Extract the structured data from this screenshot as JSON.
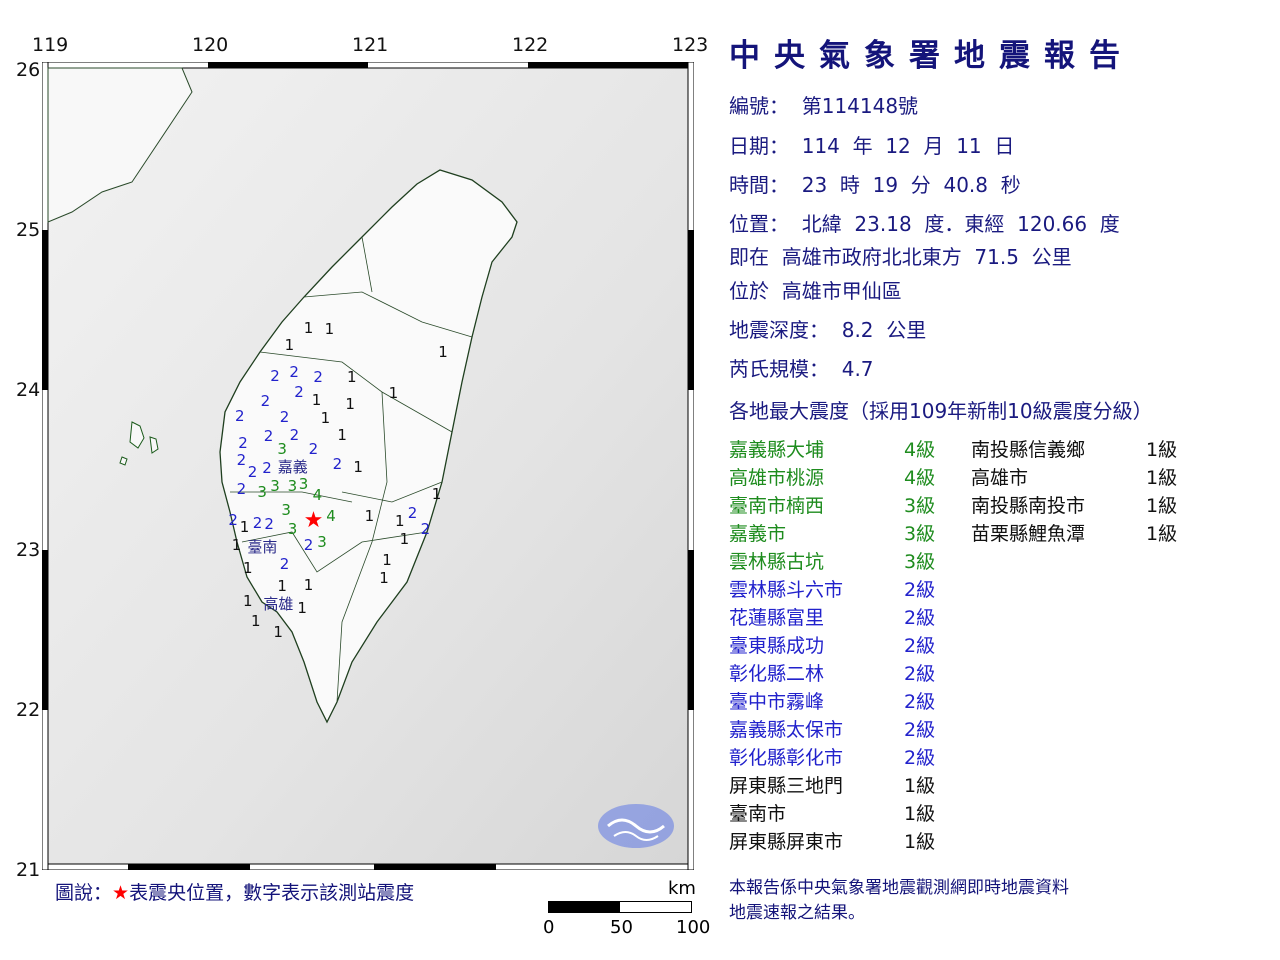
{
  "map": {
    "lon_ticks": [
      "119",
      "120",
      "121",
      "122",
      "123"
    ],
    "lat_ticks": [
      "26",
      "25",
      "24",
      "23",
      "22",
      "21"
    ],
    "epicenter": {
      "lat": 23.18,
      "lon": 120.66,
      "symbol": "★",
      "color": "#ff0000"
    },
    "city_labels": [
      {
        "name": "嘉義",
        "lon": 120.53,
        "lat": 23.52
      },
      {
        "name": "臺南",
        "lon": 120.34,
        "lat": 23.02
      },
      {
        "name": "高雄",
        "lon": 120.44,
        "lat": 22.66
      }
    ],
    "intensity_colors": {
      "1": "#111111",
      "2": "#2222cc",
      "3": "#1e8c1e",
      "4": "#1e8c1e"
    },
    "stations": [
      {
        "v": "1",
        "lon": 120.63,
        "lat": 24.39
      },
      {
        "v": "1",
        "lon": 120.76,
        "lat": 24.38
      },
      {
        "v": "1",
        "lon": 120.51,
        "lat": 24.28
      },
      {
        "v": "1",
        "lon": 121.47,
        "lat": 24.24
      },
      {
        "v": "1",
        "lon": 120.9,
        "lat": 24.08
      },
      {
        "v": "1",
        "lon": 121.16,
        "lat": 23.98
      },
      {
        "v": "1",
        "lon": 120.68,
        "lat": 23.94
      },
      {
        "v": "1",
        "lon": 120.89,
        "lat": 23.91
      },
      {
        "v": "1",
        "lon": 120.71,
        "lat": 23.85
      },
      {
        "v": "1",
        "lon": 120.84,
        "lat": 23.72
      },
      {
        "v": "1",
        "lon": 120.94,
        "lat": 23.52
      },
      {
        "v": "1",
        "lon": 121.01,
        "lat": 23.21
      },
      {
        "v": "1",
        "lon": 121.2,
        "lat": 23.18
      },
      {
        "v": "1",
        "lon": 121.21,
        "lat": 23.12
      },
      {
        "v": "1",
        "lon": 121.43,
        "lat": 23.35
      },
      {
        "v": "1",
        "lon": 121.12,
        "lat": 22.94
      },
      {
        "v": "1",
        "lon": 121.07,
        "lat": 22.84
      },
      {
        "v": "1",
        "lon": 120.63,
        "lat": 22.78
      },
      {
        "v": "1",
        "lon": 120.49,
        "lat": 22.75
      },
      {
        "v": "1",
        "lon": 120.49,
        "lat": 22.68
      },
      {
        "v": "1",
        "lon": 120.25,
        "lat": 22.68
      },
      {
        "v": "1",
        "lon": 120.3,
        "lat": 22.66
      },
      {
        "v": "1",
        "lon": 120.44,
        "lat": 22.49
      },
      {
        "v": "1",
        "lon": 120.18,
        "lat": 23.03
      },
      {
        "v": "1",
        "lon": 120.25,
        "lat": 22.89
      },
      {
        "v": "1",
        "lon": 120.23,
        "lat": 23.06
      },
      {
        "v": "2",
        "lon": 120.42,
        "lat": 24.09
      },
      {
        "v": "2",
        "lon": 120.54,
        "lat": 24.11
      },
      {
        "v": "2",
        "lon": 120.69,
        "lat": 24.08
      },
      {
        "v": "2",
        "lon": 120.57,
        "lat": 23.99
      },
      {
        "v": "2",
        "lon": 120.36,
        "lat": 23.93
      },
      {
        "v": "2",
        "lon": 120.2,
        "lat": 23.84
      },
      {
        "v": "2",
        "lon": 120.48,
        "lat": 23.83
      },
      {
        "v": "2",
        "lon": 120.51,
        "lat": 23.73
      },
      {
        "v": "2",
        "lon": 120.38,
        "lat": 23.71
      },
      {
        "v": "2",
        "lon": 120.22,
        "lat": 23.67
      },
      {
        "v": "2",
        "lon": 120.66,
        "lat": 23.63
      },
      {
        "v": "2",
        "lon": 120.21,
        "lat": 23.56
      },
      {
        "v": "2",
        "lon": 120.28,
        "lat": 23.49
      },
      {
        "v": "2",
        "lon": 120.37,
        "lat": 23.51
      },
      {
        "v": "2",
        "lon": 120.81,
        "lat": 23.54
      },
      {
        "v": "2",
        "lon": 120.21,
        "lat": 23.38
      },
      {
        "v": "2",
        "lon": 120.19,
        "lat": 23.2
      },
      {
        "v": "2",
        "lon": 120.28,
        "lat": 23.17
      },
      {
        "v": "2",
        "lon": 120.34,
        "lat": 23.06
      },
      {
        "v": "2",
        "lon": 120.63,
        "lat": 23.03
      },
      {
        "v": "2",
        "lon": 120.48,
        "lat": 22.91
      },
      {
        "v": "2",
        "lon": 121.28,
        "lat": 23.23
      },
      {
        "v": "2",
        "lon": 121.36,
        "lat": 23.13
      },
      {
        "v": "3",
        "lon": 120.54,
        "lat": 23.66
      },
      {
        "v": "3",
        "lon": 120.46,
        "lat": 23.57
      },
      {
        "v": "3",
        "lon": 120.42,
        "lat": 23.53
      },
      {
        "v": "3",
        "lon": 120.58,
        "lat": 23.46
      },
      {
        "v": "3",
        "lon": 120.39,
        "lat": 23.38
      },
      {
        "v": "3",
        "lon": 120.49,
        "lat": 23.25
      },
      {
        "v": "3",
        "lon": 120.53,
        "lat": 23.21
      },
      {
        "v": "3",
        "lon": 120.57,
        "lat": 23.11
      },
      {
        "v": "4",
        "lon": 120.61,
        "lat": 23.27
      },
      {
        "v": "4",
        "lon": 120.77,
        "lat": 23.21
      }
    ],
    "legend": {
      "label": "圖說：",
      "star": "★",
      "text": "表震央位置，數字表示該測站震度"
    },
    "scale": {
      "unit": "km",
      "labels": [
        "0",
        "50",
        "100"
      ]
    }
  },
  "report": {
    "title": "中央氣象署地震報告",
    "number_line": "編號：  第114148號",
    "date_line": "日期：  114  年  12  月  11  日",
    "time_line": "時間：  23  時  19  分  40.8  秒",
    "location_line": "位置：  北緯  23.18  度．東經  120.66  度",
    "relative_line": "即在  高雄市政府北北東方  71.5  公里",
    "district_line": "位於  高雄市甲仙區",
    "depth_line": "地震深度：  8.2  公里",
    "magnitude_line": "芮氏規模：  4.7",
    "intensity_header": "各地最大震度（採用109年新制10級震度分級）",
    "intensity_col1": [
      {
        "place": "嘉義縣大埔",
        "level": "4級",
        "color": "#1e8c1e"
      },
      {
        "place": "高雄市桃源",
        "level": "4級",
        "color": "#1e8c1e"
      },
      {
        "place": "臺南市楠西",
        "level": "3級",
        "color": "#1e8c1e"
      },
      {
        "place": "嘉義市",
        "level": "3級",
        "color": "#1e8c1e"
      },
      {
        "place": "雲林縣古坑",
        "level": "3級",
        "color": "#1e8c1e"
      },
      {
        "place": "雲林縣斗六市",
        "level": "2級",
        "color": "#2222cc"
      },
      {
        "place": "花蓮縣富里",
        "level": "2級",
        "color": "#2222cc"
      },
      {
        "place": "臺東縣成功",
        "level": "2級",
        "color": "#2222cc"
      },
      {
        "place": "彰化縣二林",
        "level": "2級",
        "color": "#2222cc"
      },
      {
        "place": "臺中市霧峰",
        "level": "2級",
        "color": "#2222cc"
      },
      {
        "place": "嘉義縣太保市",
        "level": "2級",
        "color": "#2222cc"
      },
      {
        "place": "彰化縣彰化市",
        "level": "2級",
        "color": "#2222cc"
      },
      {
        "place": "屏東縣三地門",
        "level": "1級",
        "color": "#111111"
      },
      {
        "place": "臺南市",
        "level": "1級",
        "color": "#111111"
      },
      {
        "place": "屏東縣屏東市",
        "level": "1級",
        "color": "#111111"
      }
    ],
    "intensity_col2": [
      {
        "place": "南投縣信義鄉",
        "level": "1級",
        "color": "#111111"
      },
      {
        "place": "高雄市",
        "level": "1級",
        "color": "#111111"
      },
      {
        "place": "南投縣南投市",
        "level": "1級",
        "color": "#111111"
      },
      {
        "place": "苗栗縣鯉魚潭",
        "level": "1級",
        "color": "#111111"
      }
    ],
    "footnote_1": "本報告係中央氣象署地震觀測網即時地震資料",
    "footnote_2": "地震速報之結果。"
  }
}
